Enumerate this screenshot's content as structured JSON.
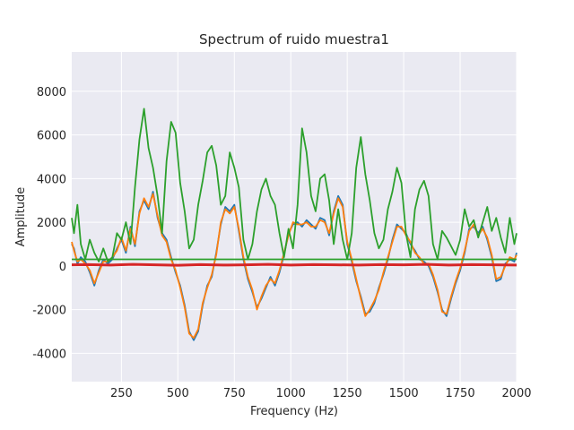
{
  "chart_data": {
    "type": "line",
    "title": "Spectrum of ruido muestra1",
    "xlabel": "Frequency (Hz)",
    "ylabel": "Amplitude",
    "xlim": [
      30,
      2000
    ],
    "ylim": [
      -5300,
      9800
    ],
    "xticks": [
      250,
      500,
      750,
      1000,
      1250,
      1500,
      1750,
      2000
    ],
    "yticks": [
      -4000,
      -2000,
      0,
      2000,
      4000,
      6000,
      8000
    ],
    "grid": true,
    "background": "#eaeaf2",
    "series": [
      {
        "color": "#1f77b4",
        "x": [
          30,
          40,
          55,
          70,
          90,
          110,
          130,
          150,
          170,
          190,
          210,
          230,
          250,
          270,
          290,
          310,
          330,
          350,
          370,
          390,
          410,
          430,
          450,
          470,
          490,
          510,
          530,
          550,
          570,
          590,
          610,
          630,
          650,
          670,
          690,
          710,
          730,
          750,
          770,
          790,
          810,
          830,
          850,
          870,
          890,
          910,
          930,
          950,
          970,
          990,
          1010,
          1030,
          1050,
          1070,
          1090,
          1110,
          1130,
          1150,
          1170,
          1190,
          1210,
          1230,
          1250,
          1270,
          1290,
          1310,
          1330,
          1350,
          1370,
          1390,
          1410,
          1430,
          1450,
          1470,
          1490,
          1510,
          1530,
          1550,
          1570,
          1590,
          1610,
          1630,
          1650,
          1670,
          1690,
          1710,
          1730,
          1750,
          1770,
          1790,
          1810,
          1830,
          1850,
          1870,
          1890,
          1910,
          1930,
          1950,
          1970,
          1990,
          2000
        ],
        "y": [
          1000,
          800,
          100,
          400,
          200,
          -300,
          -900,
          -200,
          300,
          100,
          300,
          800,
          1200,
          600,
          1800,
          900,
          2500,
          3000,
          2600,
          3400,
          2200,
          1500,
          1200,
          400,
          -300,
          -900,
          -1800,
          -3000,
          -3400,
          -3000,
          -1800,
          -900,
          -500,
          600,
          1900,
          2700,
          2500,
          2800,
          1600,
          300,
          -600,
          -1200,
          -1900,
          -1500,
          -1000,
          -500,
          -900,
          -300,
          500,
          1500,
          1900,
          2000,
          1800,
          2100,
          1900,
          1700,
          2200,
          2100,
          1400,
          2500,
          3200,
          2800,
          1000,
          200,
          -700,
          -1400,
          -2200,
          -2100,
          -1700,
          -1000,
          -400,
          300,
          1200,
          1900,
          1700,
          1500,
          1000,
          700,
          300,
          200,
          0,
          -500,
          -1200,
          -2000,
          -2300,
          -1500,
          -800,
          -200,
          600,
          1700,
          1800,
          1500,
          1800,
          1200,
          400,
          -700,
          -600,
          100,
          300,
          200,
          600
        ]
      },
      {
        "color": "#ff7f0e",
        "x": [
          30,
          40,
          55,
          70,
          90,
          110,
          130,
          150,
          170,
          190,
          210,
          230,
          250,
          270,
          290,
          310,
          330,
          350,
          370,
          390,
          410,
          430,
          450,
          470,
          490,
          510,
          530,
          550,
          570,
          590,
          610,
          630,
          650,
          670,
          690,
          710,
          730,
          750,
          770,
          790,
          810,
          830,
          850,
          870,
          890,
          910,
          930,
          950,
          970,
          990,
          1010,
          1030,
          1050,
          1070,
          1090,
          1110,
          1130,
          1150,
          1170,
          1190,
          1210,
          1230,
          1250,
          1270,
          1290,
          1310,
          1330,
          1350,
          1370,
          1390,
          1410,
          1430,
          1450,
          1470,
          1490,
          1510,
          1530,
          1550,
          1570,
          1590,
          1610,
          1630,
          1650,
          1670,
          1690,
          1710,
          1730,
          1750,
          1770,
          1790,
          1810,
          1830,
          1850,
          1870,
          1890,
          1910,
          1930,
          1950,
          1970,
          1990,
          2000
        ],
        "y": [
          1100,
          700,
          200,
          300,
          100,
          -200,
          -800,
          -300,
          200,
          200,
          400,
          700,
          1300,
          700,
          1700,
          1000,
          2400,
          3100,
          2700,
          3300,
          2300,
          1400,
          1100,
          300,
          -200,
          -1000,
          -1900,
          -3100,
          -3300,
          -2900,
          -1700,
          -1000,
          -400,
          500,
          2000,
          2600,
          2400,
          2700,
          1700,
          400,
          -500,
          -1100,
          -2000,
          -1400,
          -900,
          -600,
          -800,
          -200,
          600,
          1400,
          2000,
          1900,
          1900,
          2000,
          1800,
          1800,
          2100,
          2000,
          1500,
          2400,
          3100,
          2700,
          1100,
          300,
          -600,
          -1500,
          -2300,
          -2000,
          -1600,
          -1100,
          -300,
          400,
          1100,
          1800,
          1800,
          1400,
          1100,
          600,
          400,
          100,
          100,
          -400,
          -1100,
          -2100,
          -2200,
          -1400,
          -700,
          -100,
          700,
          1600,
          1900,
          1400,
          1700,
          1300,
          500,
          -600,
          -500,
          0,
          400,
          300,
          500
        ]
      },
      {
        "color": "#2ca02c",
        "x": [
          30,
          40,
          55,
          70,
          90,
          110,
          130,
          150,
          170,
          190,
          210,
          230,
          250,
          270,
          290,
          310,
          330,
          350,
          370,
          390,
          410,
          430,
          450,
          470,
          490,
          510,
          530,
          550,
          570,
          590,
          610,
          630,
          650,
          670,
          690,
          710,
          730,
          750,
          770,
          790,
          810,
          830,
          850,
          870,
          890,
          910,
          930,
          950,
          970,
          990,
          1010,
          1030,
          1050,
          1070,
          1090,
          1110,
          1130,
          1150,
          1170,
          1190,
          1210,
          1230,
          1250,
          1270,
          1290,
          1310,
          1330,
          1350,
          1370,
          1390,
          1410,
          1430,
          1450,
          1470,
          1490,
          1510,
          1530,
          1550,
          1570,
          1590,
          1610,
          1630,
          1650,
          1670,
          1690,
          1710,
          1730,
          1750,
          1770,
          1790,
          1810,
          1830,
          1850,
          1870,
          1890,
          1910,
          1930,
          1950,
          1970,
          1990,
          2000
        ],
        "y": [
          2200,
          1500,
          2800,
          1000,
          300,
          1200,
          600,
          200,
          800,
          200,
          400,
          1500,
          1200,
          2000,
          1000,
          3600,
          5800,
          7200,
          5400,
          4500,
          3200,
          1500,
          4800,
          6600,
          6100,
          3800,
          2500,
          800,
          1200,
          2800,
          3900,
          5200,
          5500,
          4600,
          2800,
          3200,
          5200,
          4500,
          3600,
          1200,
          300,
          1000,
          2500,
          3500,
          4000,
          3200,
          2800,
          1500,
          400,
          1700,
          800,
          2800,
          6300,
          5200,
          3200,
          2500,
          4000,
          4200,
          3000,
          1000,
          2600,
          1200,
          300,
          1500,
          4500,
          5900,
          4200,
          3000,
          1500,
          800,
          1200,
          2600,
          3400,
          4500,
          3800,
          1500,
          400,
          2600,
          3500,
          3900,
          3200,
          1000,
          300,
          1600,
          1300,
          900,
          500,
          1200,
          2600,
          1800,
          2100,
          1300,
          2000,
          2700,
          1600,
          2200,
          1300,
          600,
          2200,
          1000,
          1500
        ]
      },
      {
        "color": "#d62728",
        "x": [
          30,
          100,
          200,
          300,
          400,
          500,
          600,
          700,
          800,
          900,
          1000,
          1100,
          1200,
          1300,
          1400,
          1500,
          1600,
          1700,
          1800,
          1900,
          2000
        ],
        "y": [
          50,
          60,
          40,
          70,
          50,
          30,
          60,
          40,
          50,
          70,
          40,
          60,
          50,
          40,
          60,
          50,
          70,
          40,
          60,
          50,
          40
        ]
      },
      {
        "color": "#2ca02c",
        "x": [
          30,
          2000
        ],
        "y": [
          300,
          300
        ]
      }
    ]
  }
}
